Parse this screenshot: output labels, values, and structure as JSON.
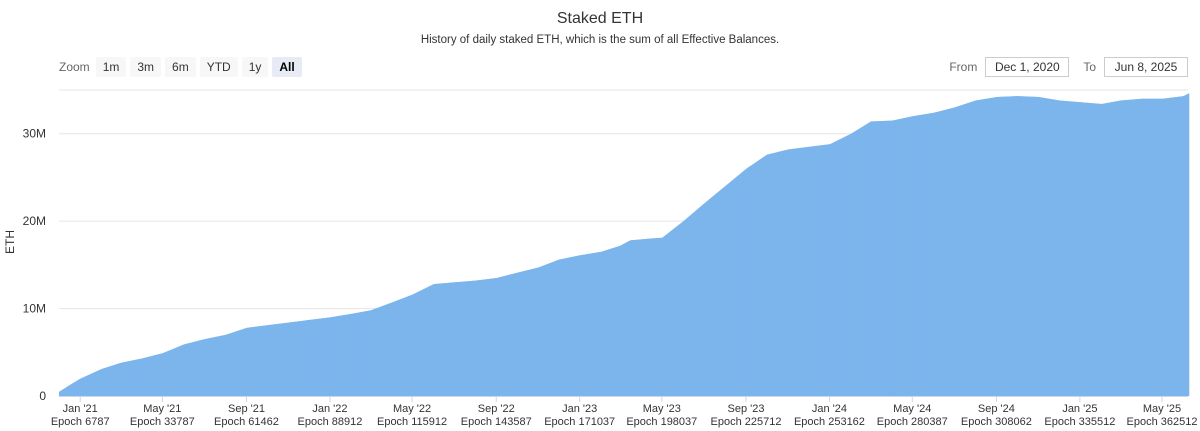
{
  "title": "Staked ETH",
  "subtitle": "History of daily staked ETH, which is the sum of all Effective Balances.",
  "zoom": {
    "label": "Zoom",
    "buttons": [
      "1m",
      "3m",
      "6m",
      "YTD",
      "1y",
      "All"
    ],
    "active": "All"
  },
  "range": {
    "from_label": "From",
    "from_value": "Dec 1, 2020",
    "to_label": "To",
    "to_value": "Jun 8, 2025"
  },
  "colors": {
    "area": "#7cb5ec",
    "grid": "#e6e6e6"
  },
  "chart_data": {
    "type": "bar",
    "ylabel": "ETH",
    "ylim": [
      0,
      35000000
    ],
    "yticks": [
      {
        "value": 0,
        "label": "0"
      },
      {
        "value": 10000000,
        "label": "10M"
      },
      {
        "value": 20000000,
        "label": "20M"
      },
      {
        "value": 30000000,
        "label": "30M"
      }
    ],
    "xlim": [
      "2020-12-01",
      "2025-06-08"
    ],
    "xticks": [
      {
        "date": "2021-01-01",
        "label": "Jan '21",
        "epoch": "Epoch 6787"
      },
      {
        "date": "2021-05-01",
        "label": "May '21",
        "epoch": "Epoch 33787"
      },
      {
        "date": "2021-09-01",
        "label": "Sep '21",
        "epoch": "Epoch 61462"
      },
      {
        "date": "2022-01-01",
        "label": "Jan '22",
        "epoch": "Epoch 88912"
      },
      {
        "date": "2022-05-01",
        "label": "May '22",
        "epoch": "Epoch 115912"
      },
      {
        "date": "2022-09-01",
        "label": "Sep '22",
        "epoch": "Epoch 143587"
      },
      {
        "date": "2023-01-01",
        "label": "Jan '23",
        "epoch": "Epoch 171037"
      },
      {
        "date": "2023-05-01",
        "label": "May '23",
        "epoch": "Epoch 198037"
      },
      {
        "date": "2023-09-01",
        "label": "Sep '23",
        "epoch": "Epoch 225712"
      },
      {
        "date": "2024-01-01",
        "label": "Jan '24",
        "epoch": "Epoch 253162"
      },
      {
        "date": "2024-05-01",
        "label": "May '24",
        "epoch": "Epoch 280387"
      },
      {
        "date": "2024-09-01",
        "label": "Sep '24",
        "epoch": "Epoch 308062"
      },
      {
        "date": "2025-01-01",
        "label": "Jan '25",
        "epoch": "Epoch 335512"
      },
      {
        "date": "2025-05-01",
        "label": "May '25",
        "epoch": "Epoch 362512"
      }
    ],
    "series": [
      {
        "points": [
          [
            "2020-12-01",
            0.5
          ],
          [
            "2020-12-15",
            1.2
          ],
          [
            "2021-01-01",
            2.0
          ],
          [
            "2021-02-01",
            3.1
          ],
          [
            "2021-03-01",
            3.8
          ],
          [
            "2021-04-01",
            4.3
          ],
          [
            "2021-05-01",
            4.9
          ],
          [
            "2021-06-01",
            5.9
          ],
          [
            "2021-07-01",
            6.5
          ],
          [
            "2021-08-01",
            7.0
          ],
          [
            "2021-09-01",
            7.8
          ],
          [
            "2021-10-01",
            8.1
          ],
          [
            "2021-11-01",
            8.4
          ],
          [
            "2021-12-01",
            8.7
          ],
          [
            "2022-01-01",
            9.0
          ],
          [
            "2022-02-01",
            9.4
          ],
          [
            "2022-03-01",
            9.8
          ],
          [
            "2022-04-01",
            10.7
          ],
          [
            "2022-05-01",
            11.6
          ],
          [
            "2022-06-01",
            12.8
          ],
          [
            "2022-07-01",
            13.0
          ],
          [
            "2022-08-01",
            13.2
          ],
          [
            "2022-09-01",
            13.5
          ],
          [
            "2022-10-01",
            14.1
          ],
          [
            "2022-11-01",
            14.7
          ],
          [
            "2022-12-01",
            15.6
          ],
          [
            "2023-01-01",
            16.1
          ],
          [
            "2023-02-01",
            16.5
          ],
          [
            "2023-03-01",
            17.2
          ],
          [
            "2023-03-15",
            17.8
          ],
          [
            "2023-04-12",
            18.0
          ],
          [
            "2023-05-01",
            18.1
          ],
          [
            "2023-06-01",
            20.0
          ],
          [
            "2023-07-01",
            22.0
          ],
          [
            "2023-08-01",
            24.0
          ],
          [
            "2023-09-01",
            26.0
          ],
          [
            "2023-10-01",
            27.6
          ],
          [
            "2023-11-01",
            28.2
          ],
          [
            "2023-12-01",
            28.5
          ],
          [
            "2024-01-01",
            28.8
          ],
          [
            "2024-02-01",
            30.0
          ],
          [
            "2024-03-01",
            31.4
          ],
          [
            "2024-04-01",
            31.5
          ],
          [
            "2024-05-01",
            32.0
          ],
          [
            "2024-06-01",
            32.4
          ],
          [
            "2024-07-01",
            33.0
          ],
          [
            "2024-08-01",
            33.8
          ],
          [
            "2024-09-01",
            34.2
          ],
          [
            "2024-10-01",
            34.3
          ],
          [
            "2024-11-01",
            34.2
          ],
          [
            "2024-12-01",
            33.8
          ],
          [
            "2025-01-01",
            33.6
          ],
          [
            "2025-02-01",
            33.4
          ],
          [
            "2025-03-01",
            33.8
          ],
          [
            "2025-04-01",
            34.0
          ],
          [
            "2025-05-01",
            34.0
          ],
          [
            "2025-06-01",
            34.3
          ],
          [
            "2025-06-08",
            34.6
          ]
        ]
      }
    ]
  }
}
